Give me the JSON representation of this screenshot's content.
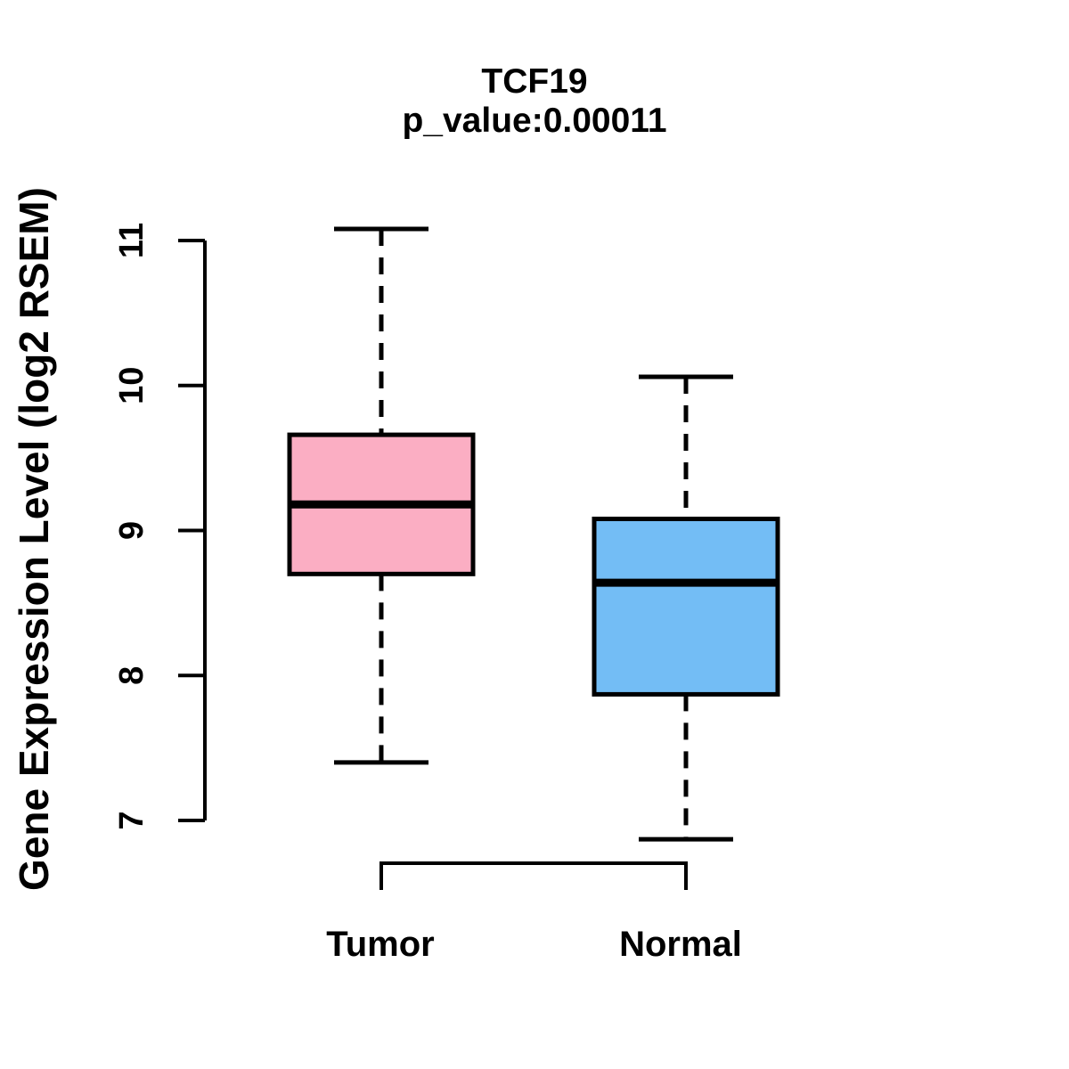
{
  "chart_data": {
    "type": "boxplot",
    "title": "TCF19",
    "subtitle": "p_value:0.00011",
    "ylabel": "Gene Expression Level (log2 RSEM)",
    "xlabel": "",
    "categories": [
      "Tumor",
      "Normal"
    ],
    "yticks": [
      7,
      8,
      9,
      10,
      11
    ],
    "ylim": [
      6.8,
      11.15
    ],
    "grid": false,
    "legend": "none",
    "series": [
      {
        "name": "Tumor",
        "color": "#FBAEC3",
        "whisker_low": 7.4,
        "q1": 8.7,
        "median": 9.18,
        "q3": 9.66,
        "whisker_high": 11.08
      },
      {
        "name": "Normal",
        "color": "#73BDF5",
        "whisker_low": 6.87,
        "q1": 7.87,
        "median": 8.64,
        "q3": 9.08,
        "whisker_high": 10.06
      }
    ],
    "colors": {
      "box_border": "#000000",
      "median_line": "#000000",
      "axis": "#000000",
      "background": "#ffffff"
    }
  }
}
